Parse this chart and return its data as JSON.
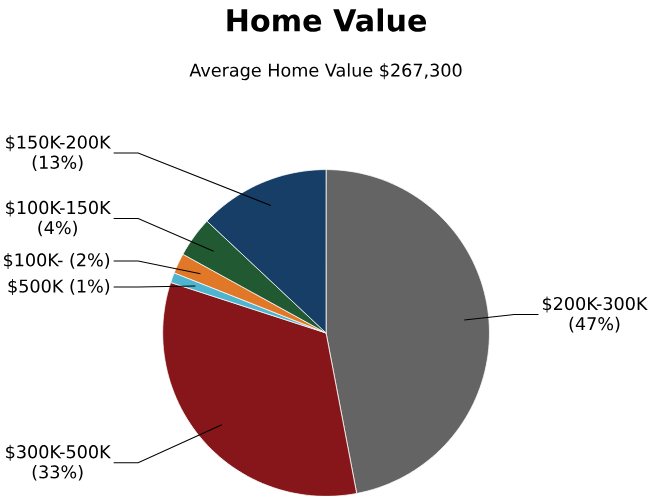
{
  "chart_data": {
    "type": "pie",
    "title": "Home Value",
    "subtitle": "Average Home Value  $267,300",
    "categories": [
      "$200K-300K",
      "$300K-500K",
      "$500K",
      "$100K-",
      "$100K-150K",
      "$150K-200K"
    ],
    "values": [
      47,
      33,
      1,
      2,
      4,
      13
    ],
    "value_labels": [
      "(47%)",
      "(33%)",
      "(1%)",
      "(2%)",
      "(4%)",
      "(13%)"
    ],
    "colors": [
      "#646464",
      "#861619",
      "#4fb4d0",
      "#e07828",
      "#215a32",
      "#163e66"
    ]
  }
}
